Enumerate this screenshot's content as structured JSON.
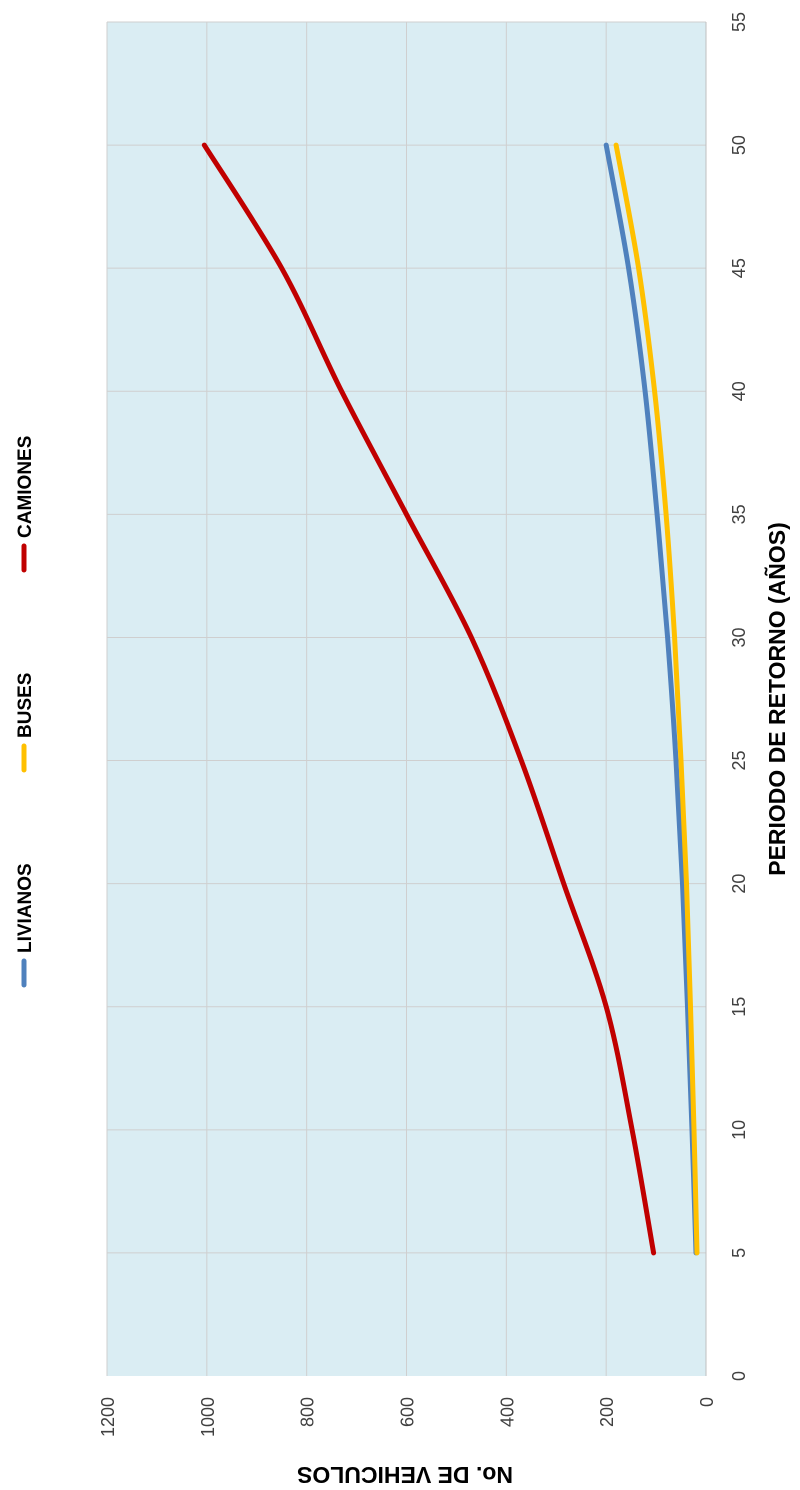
{
  "chart_data": {
    "type": "line",
    "orientation": "rotated-90-clockwise",
    "title": "",
    "xlabel": "PERIODO DE RETORNO (AÑOS)",
    "ylabel": "No. DE VEHICULOS",
    "xlim": [
      0,
      55
    ],
    "ylim": [
      0,
      1200
    ],
    "x_ticks": [
      "0",
      "5",
      "10",
      "15",
      "20",
      "25",
      "30",
      "35",
      "40",
      "45",
      "50",
      "55"
    ],
    "y_ticks": [
      "0",
      "200",
      "400",
      "600",
      "800",
      "1000",
      "1200"
    ],
    "grid": true,
    "legend_position": "top",
    "plot_background": "#daedf3",
    "x": [
      5,
      10,
      15,
      20,
      25,
      30,
      35,
      40,
      45,
      50
    ],
    "series": [
      {
        "name": "LIVIANOS",
        "color": "#4f81bd",
        "values": [
          20,
          28,
          37,
          47,
          60,
          77,
          98,
          122,
          155,
          200
        ]
      },
      {
        "name": "BUSES",
        "color": "#ffc000",
        "values": [
          18,
          24,
          31,
          39,
          50,
          63,
          80,
          103,
          135,
          180
        ]
      },
      {
        "name": "CAMIONES",
        "color": "#c00000",
        "values": [
          105,
          148,
          200,
          285,
          370,
          470,
          600,
          730,
          850,
          1005
        ]
      }
    ]
  }
}
